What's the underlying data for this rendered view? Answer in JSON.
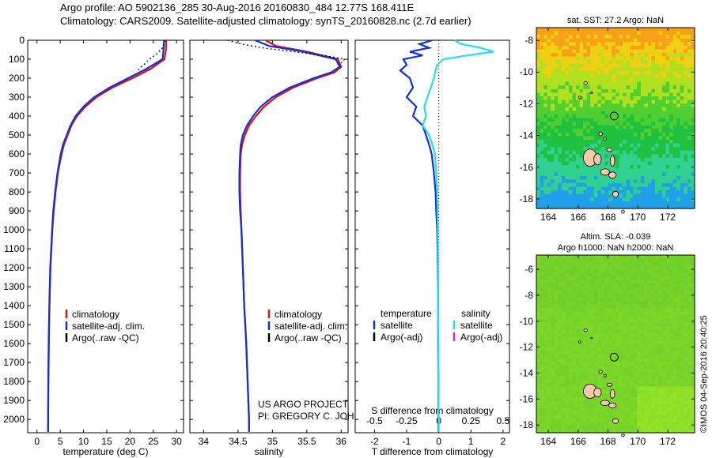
{
  "header": {
    "line1": "Argo profile: AO 5902136_285 30-Aug-2016 20160830_484 12.77S 168.411E",
    "line2": "Climatology: CARS2009. Satellite-adjusted climatology: synTS_20160828.nc (2.7d earlier)"
  },
  "colors": {
    "climatology": "#e01010",
    "satellite": "#1030d8",
    "argo": "#000000",
    "sat_salinity": "#20e0f0",
    "argo_salinity": "#e020d0"
  },
  "depth_axis": {
    "ticks": [
      0,
      100,
      200,
      300,
      400,
      500,
      600,
      700,
      800,
      900,
      1000,
      1100,
      1200,
      1300,
      1400,
      1500,
      1600,
      1700,
      1800,
      1900,
      2000
    ],
    "ylim": [
      2070,
      0
    ]
  },
  "chart_data": [
    {
      "type": "line",
      "xlabel": "temperature (deg C)",
      "xticks": [
        0,
        5,
        10,
        15,
        20,
        25,
        30
      ],
      "xlim": [
        -2,
        31.5
      ],
      "legend": [
        "climatology",
        "satellite-adj. clim.",
        "Argo(..raw -QC)"
      ],
      "series": [
        {
          "name": "climatology",
          "color": "#e01010",
          "depth": [
            0,
            50,
            100,
            150,
            200,
            250,
            300,
            350,
            400,
            450,
            500,
            550,
            600,
            700,
            800,
            900,
            1000,
            1200,
            1400,
            1600,
            1800,
            2000,
            2065
          ],
          "values": [
            27.8,
            27.7,
            27.4,
            24.5,
            20.5,
            16.2,
            12.8,
            10.4,
            8.6,
            7.4,
            6.6,
            5.8,
            5.3,
            4.5,
            4.0,
            3.6,
            3.3,
            2.9,
            2.7,
            2.55,
            2.45,
            2.4,
            2.4
          ]
        },
        {
          "name": "satellite-adj. clim.",
          "color": "#1030d8",
          "depth": [
            0,
            50,
            100,
            150,
            200,
            250,
            300,
            350,
            400,
            450,
            500,
            550,
            600,
            700,
            800,
            900,
            1000,
            1200,
            1400,
            1600,
            1800,
            2000,
            2065
          ],
          "values": [
            27.3,
            27.2,
            27.0,
            23.6,
            19.6,
            15.6,
            12.3,
            10.0,
            8.3,
            7.2,
            6.4,
            5.6,
            5.1,
            4.4,
            3.9,
            3.5,
            3.25,
            2.85,
            2.65,
            2.5,
            2.42,
            2.38,
            2.38
          ]
        },
        {
          "name": "Argo(..raw -QC)",
          "color": "#000000",
          "dotted": true,
          "depth": [
            0,
            40,
            70,
            100,
            130,
            160
          ],
          "values": [
            27.6,
            27.0,
            25.8,
            24.2,
            22.9,
            21.6
          ]
        }
      ]
    },
    {
      "type": "line",
      "xlabel": "salinity",
      "xticks": [
        34,
        34.5,
        35,
        35.5,
        36
      ],
      "xlim": [
        33.8,
        36.1
      ],
      "legend": [
        "climatology",
        "satellite-adj. clim.",
        "Argo(..raw -QC)"
      ],
      "series": [
        {
          "name": "climatology",
          "color": "#e01010",
          "depth": [
            0,
            30,
            60,
            100,
            140,
            170,
            200,
            250,
            300,
            350,
            400,
            450,
            500,
            550,
            600,
            700,
            800,
            900,
            1000,
            1200,
            1400,
            1600,
            1800,
            2000,
            2065
          ],
          "values": [
            34.9,
            35.05,
            35.5,
            35.95,
            36.0,
            35.9,
            35.65,
            35.3,
            35.05,
            34.88,
            34.76,
            34.66,
            34.6,
            34.56,
            34.54,
            34.53,
            34.53,
            34.54,
            34.55,
            34.57,
            34.59,
            34.62,
            34.64,
            34.66,
            34.66
          ]
        },
        {
          "name": "satellite-adj. clim.",
          "color": "#1030d8",
          "depth": [
            0,
            30,
            60,
            100,
            140,
            170,
            200,
            250,
            300,
            350,
            400,
            450,
            500,
            550,
            600,
            700,
            800,
            900,
            1000,
            1200,
            1400,
            1600,
            1800,
            2000,
            2065
          ],
          "values": [
            34.75,
            34.95,
            35.45,
            35.92,
            35.98,
            35.85,
            35.6,
            35.25,
            35.0,
            34.83,
            34.72,
            34.63,
            34.57,
            34.54,
            34.53,
            34.52,
            34.52,
            34.53,
            34.55,
            34.57,
            34.59,
            34.62,
            34.64,
            34.66,
            34.66
          ]
        },
        {
          "name": "Argo(..raw -QC)",
          "color": "#000000",
          "dotted": true,
          "depth": [
            0,
            20,
            40,
            60,
            80,
            100,
            120
          ],
          "values": [
            34.35,
            34.55,
            34.85,
            35.3,
            35.75,
            36.05,
            36.0
          ]
        }
      ]
    },
    {
      "type": "line",
      "xlabel_top": "S difference from climatology",
      "xlabel": "T difference from climatology",
      "xticks_top": [
        "-0.5",
        "-0.25",
        "0",
        "0.25",
        "0.5"
      ],
      "xticks": [
        -2,
        -1,
        0,
        1,
        2
      ],
      "xlim": [
        -2.6,
        2.2
      ],
      "legend_temperature": {
        "title": "temperature",
        "items": [
          "satellite",
          "Argo(-adj)"
        ]
      },
      "legend_salinity": {
        "title": "salinity",
        "items": [
          "satellite",
          "Argo(-adj)"
        ]
      },
      "series": [
        {
          "name": "satellite",
          "quantity": "temperature",
          "color": "#1030d8",
          "depth": [
            0,
            20,
            40,
            60,
            80,
            100,
            130,
            160,
            200,
            250,
            300,
            350,
            400,
            450,
            500,
            550,
            600,
            700,
            800,
            900,
            1000,
            1100,
            1200,
            1400,
            1600,
            1800,
            2000,
            2065
          ],
          "values": [
            -0.2,
            -0.6,
            -0.3,
            -0.9,
            -0.5,
            -1.1,
            -1.0,
            -1.2,
            -0.9,
            -0.8,
            -1.0,
            -0.7,
            -0.8,
            -0.5,
            -0.4,
            -0.3,
            -0.22,
            -0.15,
            -0.1,
            -0.08,
            -0.05,
            -0.04,
            -0.03,
            -0.02,
            -0.02,
            -0.01,
            -0.01,
            -0.01
          ]
        },
        {
          "name": "satellite",
          "quantity": "salinity",
          "color": "#20e0f0",
          "depth": [
            0,
            20,
            40,
            60,
            80,
            100,
            130,
            160,
            200,
            250,
            300,
            350,
            400,
            450,
            500,
            550,
            600,
            700,
            800,
            900,
            1000,
            1200,
            1400,
            1600,
            1800,
            2000,
            2065
          ],
          "values": [
            0.5,
            0.7,
            1.3,
            1.7,
            0.9,
            0.15,
            -0.05,
            -0.1,
            -0.15,
            -0.25,
            -0.35,
            -0.45,
            -0.4,
            -0.5,
            -0.3,
            -0.2,
            -0.12,
            -0.08,
            -0.05,
            -0.04,
            -0.03,
            -0.02,
            -0.02,
            -0.01,
            -0.01,
            0.0,
            0.0
          ]
        }
      ]
    },
    {
      "type": "heatmap",
      "title": "sat. SST: 27.2  Argo: NaN",
      "xticks": [
        164,
        166,
        168,
        170,
        172
      ],
      "yticks": [
        -8,
        -10,
        -12,
        -14,
        -16,
        -18
      ],
      "xlim": [
        163.2,
        173.8
      ],
      "ylim": [
        -18.6,
        -7.2
      ],
      "argo_location": {
        "lon": 168.411,
        "lat": -12.77
      }
    },
    {
      "type": "heatmap",
      "title_line1": "Altim. SLA: -0.039",
      "title_line2": "Argo h1000: NaN h2000: NaN",
      "xticks": [
        164,
        166,
        168,
        170,
        172
      ],
      "yticks": [
        -6,
        -8,
        -10,
        -12,
        -14,
        -16,
        -18
      ],
      "xlim": [
        163.2,
        173.8
      ],
      "ylim": [
        -18.6,
        -4.9
      ],
      "argo_location": {
        "lon": 168.411,
        "lat": -12.77
      }
    }
  ],
  "credits": {
    "line1": "US ARGO PROJECT",
    "line2": "PI: GREGORY C. JOHNSON"
  },
  "stamp": "©IMOS 04-Sep-2016 20:40:25"
}
